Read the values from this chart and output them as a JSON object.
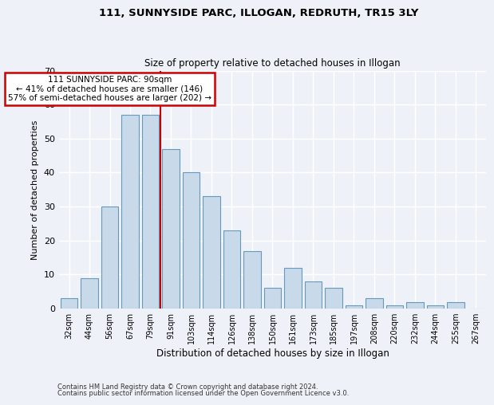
{
  "title1": "111, SUNNYSIDE PARC, ILLOGAN, REDRUTH, TR15 3LY",
  "title2": "Size of property relative to detached houses in Illogan",
  "xlabel": "Distribution of detached houses by size in Illogan",
  "ylabel": "Number of detached properties",
  "categories": [
    "32sqm",
    "44sqm",
    "56sqm",
    "67sqm",
    "79sqm",
    "91sqm",
    "103sqm",
    "114sqm",
    "126sqm",
    "138sqm",
    "150sqm",
    "161sqm",
    "173sqm",
    "185sqm",
    "197sqm",
    "208sqm",
    "220sqm",
    "232sqm",
    "244sqm",
    "255sqm",
    "267sqm"
  ],
  "values": [
    3,
    9,
    30,
    57,
    57,
    47,
    40,
    33,
    23,
    17,
    6,
    12,
    8,
    6,
    1,
    3,
    1,
    2,
    1,
    2,
    0
  ],
  "bar_color": "#c8d9ea",
  "bar_edge_color": "#6699bb",
  "vline_color": "#cc0000",
  "annotation_text": "111 SUNNYSIDE PARC: 90sqm\n← 41% of detached houses are smaller (146)\n57% of semi-detached houses are larger (202) →",
  "annotation_box_color": "white",
  "annotation_box_edge_color": "#cc0000",
  "ylim": [
    0,
    70
  ],
  "yticks": [
    0,
    10,
    20,
    30,
    40,
    50,
    60,
    70
  ],
  "footer1": "Contains HM Land Registry data © Crown copyright and database right 2024.",
  "footer2": "Contains public sector information licensed under the Open Government Licence v3.0.",
  "bg_color": "#eef2f8",
  "grid_color": "white"
}
